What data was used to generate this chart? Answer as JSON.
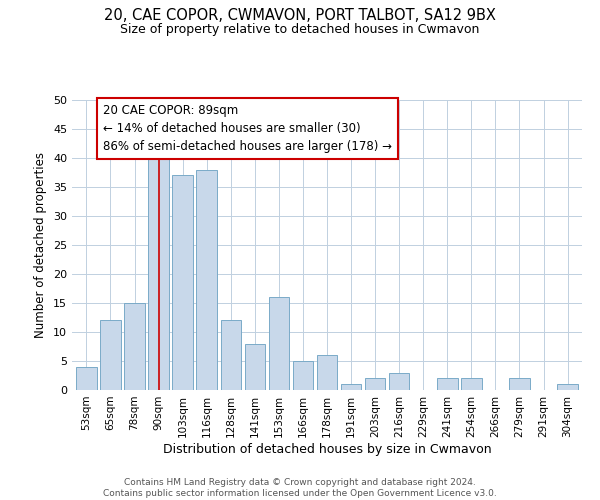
{
  "title": "20, CAE COPOR, CWMAVON, PORT TALBOT, SA12 9BX",
  "subtitle": "Size of property relative to detached houses in Cwmavon",
  "xlabel": "Distribution of detached houses by size in Cwmavon",
  "ylabel": "Number of detached properties",
  "bar_labels": [
    "53sqm",
    "65sqm",
    "78sqm",
    "90sqm",
    "103sqm",
    "116sqm",
    "128sqm",
    "141sqm",
    "153sqm",
    "166sqm",
    "178sqm",
    "191sqm",
    "203sqm",
    "216sqm",
    "229sqm",
    "241sqm",
    "254sqm",
    "266sqm",
    "279sqm",
    "291sqm",
    "304sqm"
  ],
  "bar_values": [
    4,
    12,
    15,
    40,
    37,
    38,
    12,
    8,
    16,
    5,
    6,
    1,
    2,
    3,
    0,
    2,
    2,
    0,
    2,
    0,
    1
  ],
  "bar_color": "#c8d8ea",
  "bar_edge_color": "#7aaac8",
  "vline_x": 3,
  "vline_color": "#cc0000",
  "annotation_title": "20 CAE COPOR: 89sqm",
  "annotation_line1": "← 14% of detached houses are smaller (30)",
  "annotation_line2": "86% of semi-detached houses are larger (178) →",
  "annotation_box_color": "#ffffff",
  "annotation_box_edge": "#cc0000",
  "ylim": [
    0,
    50
  ],
  "yticks": [
    0,
    5,
    10,
    15,
    20,
    25,
    30,
    35,
    40,
    45,
    50
  ],
  "footer_line1": "Contains HM Land Registry data © Crown copyright and database right 2024.",
  "footer_line2": "Contains public sector information licensed under the Open Government Licence v3.0.",
  "bg_color": "#ffffff",
  "grid_color": "#c0d0e0"
}
